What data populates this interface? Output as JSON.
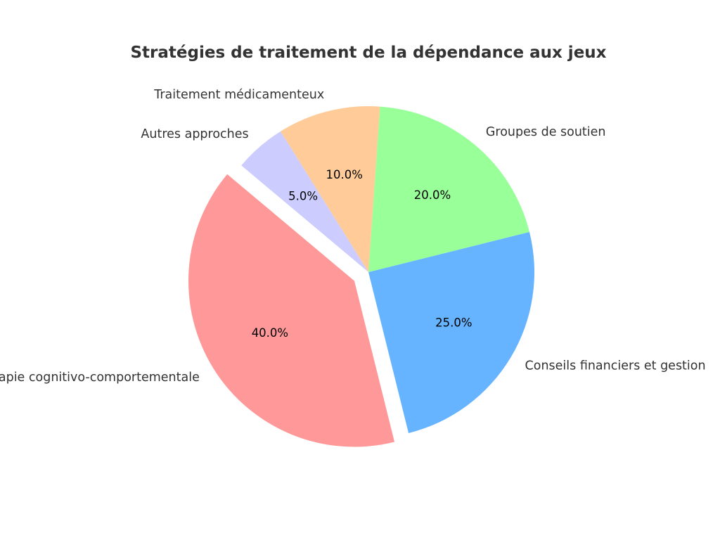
{
  "chart_data": {
    "type": "pie",
    "title": "Stratégies de traitement de la dépendance aux jeux",
    "categories": [
      "Thérapie cognitivo-comportementale",
      "Conseils financiers et gestion",
      "Groupes de soutien",
      "Traitement médicamenteux",
      "Autres approches"
    ],
    "values": [
      40,
      25,
      20,
      10,
      5
    ],
    "percent_labels": [
      "40.0%",
      "25.0%",
      "20.0%",
      "10.0%",
      "5.0%"
    ],
    "colors": [
      "#ff9999",
      "#66b3ff",
      "#99ff99",
      "#ffcc99",
      "#ccccff"
    ],
    "exploded": [
      true,
      false,
      false,
      false,
      false
    ],
    "start_angle_deg": 140,
    "direction": "counterclockwise"
  }
}
